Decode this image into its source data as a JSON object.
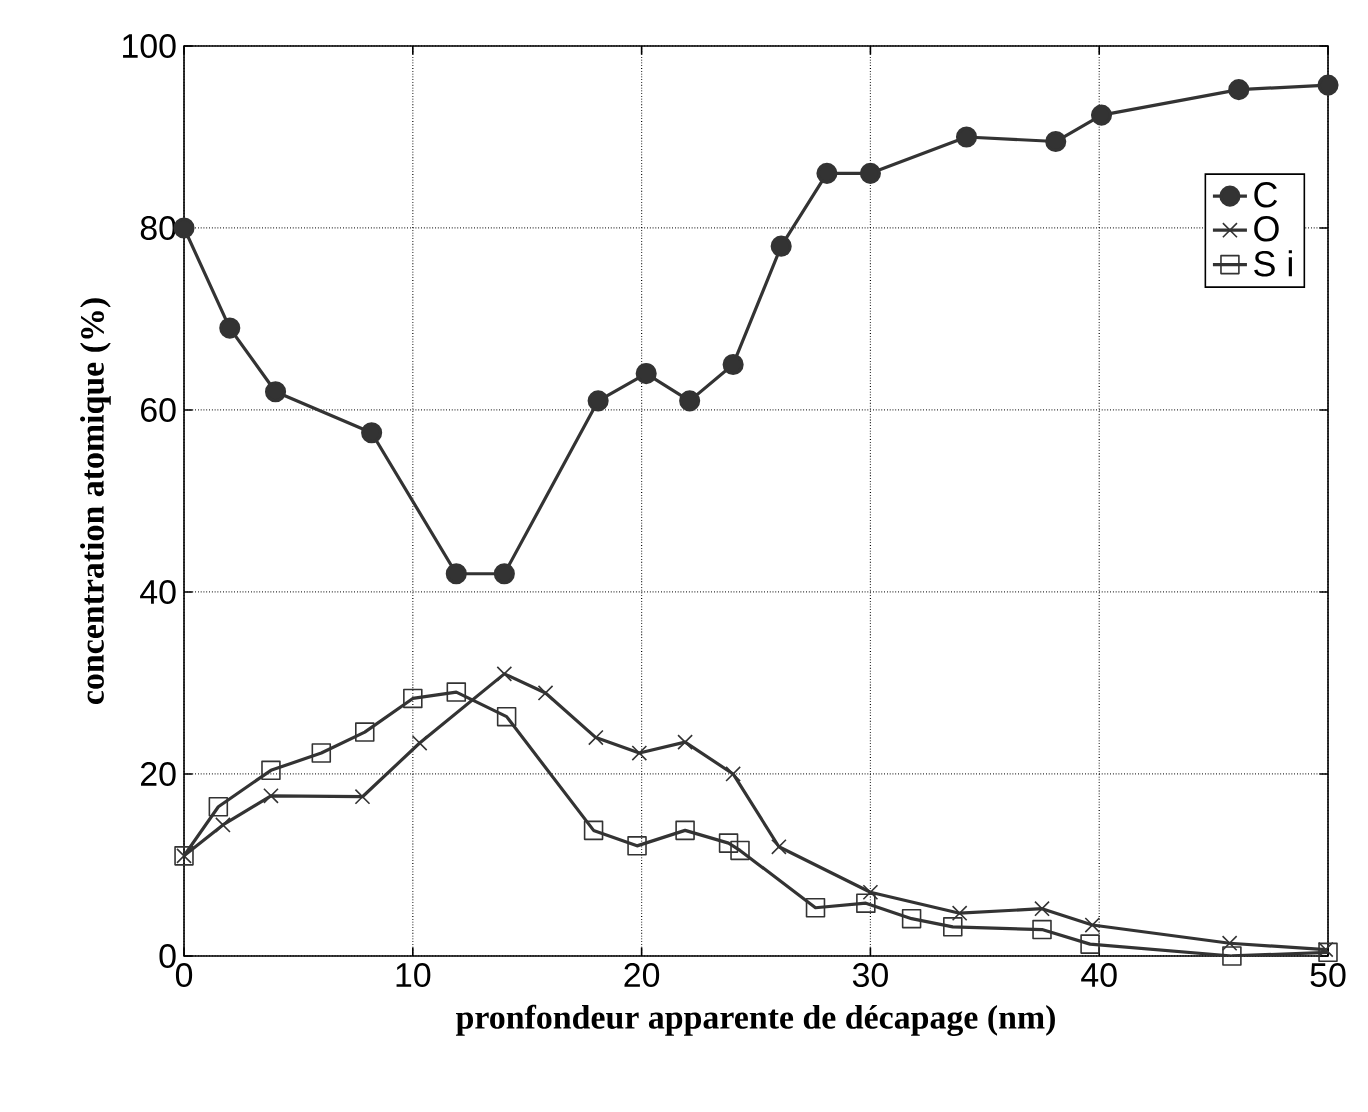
{
  "chart_data": {
    "type": "line",
    "xlabel": "pronfondeur apparente de décapage (nm)",
    "ylabel": "concentration atomique (%)",
    "xlim": [
      0,
      50
    ],
    "ylim": [
      0,
      100
    ],
    "xticks": [
      0,
      10,
      20,
      30,
      40,
      50
    ],
    "yticks": [
      0,
      20,
      40,
      60,
      80,
      100
    ],
    "grid": true,
    "legend": "top right",
    "line_style": "solid",
    "series": [
      {
        "name": "C",
        "color": "#333333",
        "marker": "circle",
        "x": [
          0,
          2,
          4,
          8.2,
          11.9,
          14,
          18.1,
          20.2,
          22.1,
          24,
          26.1,
          28.1,
          30,
          34.2,
          38.1,
          40.1,
          46.1,
          50
        ],
        "values": [
          80,
          69,
          62,
          57.5,
          42,
          42,
          61,
          64,
          61,
          65,
          78,
          86,
          86,
          90,
          89.5,
          92.4,
          95.2,
          95.7
        ]
      },
      {
        "name": "O",
        "color": "#333333",
        "marker": "cross",
        "x": [
          0,
          1.7,
          3.8,
          7.8,
          10.3,
          14,
          15.8,
          18,
          19.9,
          21.9,
          24,
          26,
          30,
          33.9,
          37.5,
          39.7,
          45.7,
          49.9
        ],
        "values": [
          11,
          14.4,
          17.6,
          17.5,
          23.4,
          31,
          28.9,
          24,
          22.3,
          23.5,
          20,
          12,
          7,
          4.7,
          5.2,
          3.4,
          1.4,
          0.7
        ]
      },
      {
        "name": "S i",
        "color": "#333333",
        "marker": "square",
        "x": [
          0,
          1.5,
          3.8,
          6,
          7.9,
          10,
          11.9,
          14.1,
          17.9,
          19.8,
          21.9,
          23.8,
          24.3,
          27.6,
          29.8,
          31.8,
          33.6,
          37.5,
          39.6,
          45.8,
          50
        ],
        "values": [
          11,
          16.4,
          20.4,
          22.3,
          24.6,
          28.3,
          29,
          26.3,
          13.8,
          12.1,
          13.8,
          12.4,
          11.6,
          5.3,
          5.8,
          4.1,
          3.2,
          2.9,
          1.3,
          0,
          0.4
        ]
      }
    ]
  }
}
